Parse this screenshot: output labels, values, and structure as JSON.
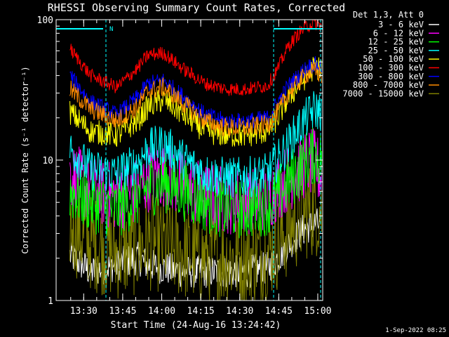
{
  "chart_data": {
    "type": "line",
    "title": "RHESSI Observing Summary Count Rates, Corrected",
    "xlabel": "Start Time (24-Aug-16 13:24:42)",
    "ylabel": "Corrected Count Rate (s⁻¹ detector⁻¹)",
    "yscale": "log",
    "ylim": [
      1,
      100
    ],
    "xlim_minutes": [
      0,
      37.6
    ],
    "x_ticks": [
      {
        "t": 5.3,
        "label": "13:30"
      },
      {
        "t": 20.3,
        "label": "13:45"
      },
      {
        "t": 35.3,
        "label": "14:00"
      },
      {
        "t": 50.3,
        "label": "14:15"
      },
      {
        "t": 65.3,
        "label": "14:30"
      },
      {
        "t": 80.3,
        "label": "14:45"
      },
      {
        "t": 95.3,
        "label": "15:00"
      }
    ],
    "y_ticks": [
      {
        "v": 1,
        "label": "1"
      },
      {
        "v": 10,
        "label": "10"
      },
      {
        "v": 100,
        "label": "100"
      }
    ],
    "legend_title": "Det 1,3, Att 0",
    "legend_position": "outside-right",
    "attenuator_markers": {
      "left_label": "N"
    },
    "footer": "1-Sep-2022 08:25",
    "time": [
      0,
      8,
      18,
      26,
      30,
      36,
      44,
      52,
      60,
      68,
      76,
      80,
      84,
      88,
      91,
      94,
      97
    ],
    "series": [
      {
        "name": "3 - 6 keV",
        "color": "#ffffff",
        "values": [
          2.1,
          1.6,
          1.8,
          2.0,
          1.8,
          1.7,
          1.6,
          1.6,
          1.6,
          1.6,
          1.7,
          2.0,
          2.5,
          3.0,
          3.3,
          3.5,
          3.5
        ]
      },
      {
        "name": "6 - 12 keV",
        "color": "#ff00ff",
        "values": [
          8,
          6,
          5.5,
          6,
          7.5,
          8,
          6.5,
          5.5,
          5.2,
          5.2,
          5.5,
          6.5,
          7.5,
          8.5,
          9.5,
          9.5,
          7.5
        ]
      },
      {
        "name": "12 - 25 keV",
        "color": "#00ff00",
        "values": [
          6,
          5,
          4.5,
          5.5,
          6.5,
          7,
          6,
          5,
          4.5,
          4.5,
          4.8,
          5.5,
          7,
          8.5,
          10,
          11,
          10
        ]
      },
      {
        "name": "25 - 50 keV",
        "color": "#00ffff",
        "values": [
          12,
          8.5,
          8,
          9.5,
          12,
          13,
          10,
          8,
          7.5,
          7.5,
          8,
          10,
          13,
          17,
          20,
          23,
          22
        ]
      },
      {
        "name": "50 - 100 keV",
        "color": "#ffff00",
        "values": [
          22,
          16,
          15,
          19,
          24,
          27,
          21,
          16,
          15,
          15,
          16,
          20,
          28,
          34,
          40,
          46,
          45
        ]
      },
      {
        "name": "100 - 300 keV",
        "color": "#ff0000",
        "values": [
          62,
          40,
          33,
          45,
          56,
          58,
          44,
          35,
          32,
          32,
          34,
          45,
          65,
          80,
          90,
          95,
          90
        ]
      },
      {
        "name": "300 - 800 keV",
        "color": "#0000ff",
        "values": [
          40,
          26,
          21,
          28,
          35,
          37,
          28,
          21,
          19,
          19,
          20,
          26,
          34,
          40,
          46,
          48,
          46
        ]
      },
      {
        "name": "800 - 7000 keV",
        "color": "#ff8c00",
        "values": [
          32,
          23,
          19,
          24,
          31,
          33,
          25,
          19,
          17,
          17,
          18,
          22,
          30,
          36,
          41,
          43,
          40
        ]
      },
      {
        "name": "7000 - 15000 keV",
        "color": "#808000",
        "values": [
          3.5,
          2.6,
          2.2,
          2.4,
          2.6,
          2.5,
          2.2,
          2.0,
          2.0,
          2.0,
          2.2,
          2.6,
          3.2,
          3.8,
          4.3,
          4.5,
          4.4
        ]
      }
    ]
  }
}
